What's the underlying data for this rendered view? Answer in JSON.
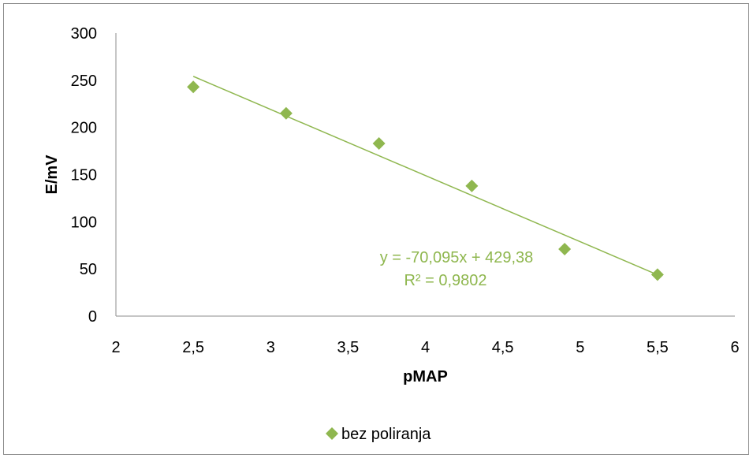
{
  "chart_data": {
    "type": "scatter",
    "xlabel": "pMAP",
    "ylabel": "E/mV",
    "xlim": [
      2,
      6
    ],
    "ylim": [
      0,
      300
    ],
    "xticks": [
      "2",
      "2,5",
      "3",
      "3,5",
      "4",
      "4,5",
      "5",
      "5,5",
      "6"
    ],
    "yticks": [
      "0",
      "50",
      "100",
      "150",
      "200",
      "250",
      "300"
    ],
    "grid": false,
    "legend_position": "bottom",
    "series": [
      {
        "name": "bez poliranja",
        "color": "#8fb74f",
        "marker": "diamond",
        "x": [
          2.5,
          3.1,
          3.7,
          4.3,
          4.9,
          5.5
        ],
        "y": [
          243,
          215,
          183,
          138,
          71,
          44
        ]
      }
    ],
    "trendline": {
      "type": "linear",
      "slope": -70.095,
      "intercept": 429.38,
      "x_range": [
        2.5,
        5.5
      ],
      "color": "#8fb74f",
      "equation_label": "y = -70,095x + 429,38",
      "r2_label": "R² = 0,9802"
    }
  }
}
